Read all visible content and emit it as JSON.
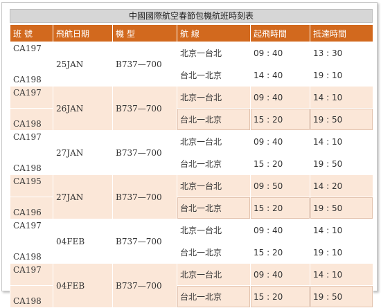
{
  "title": "中國國際航空春節包機航班時刻表",
  "headers": [
    "班 號",
    "飛航日期",
    "機 型",
    "航 線",
    "起飛時間",
    "抵達時間"
  ],
  "groups": [
    {
      "date": "25JAN",
      "aircraft": "B737—700",
      "flights": [
        {
          "code": "CA197",
          "route": "北京一台北",
          "dep": "09 : 40",
          "arr": "13 : 30"
        },
        {
          "code": "CA198",
          "route": "台北一北京",
          "dep": "14 : 40",
          "arr": "19 : 10"
        }
      ]
    },
    {
      "date": "26JAN",
      "aircraft": "B737—700",
      "flights": [
        {
          "code": "CA197",
          "route": "北京一台北",
          "dep": "09 : 40",
          "arr": "14 : 10"
        },
        {
          "code": "CA198",
          "route": "台北一北京",
          "dep": "15 : 20",
          "arr": "19 : 50"
        }
      ]
    },
    {
      "date": "27JAN",
      "aircraft": "B737—700",
      "flights": [
        {
          "code": "CA197",
          "route": "北京一台北",
          "dep": "09 : 40",
          "arr": "14 : 10"
        },
        {
          "code": "CA198",
          "route": "台北一北京",
          "dep": "15 : 20",
          "arr": "19 : 50"
        }
      ]
    },
    {
      "date": "27JAN",
      "aircraft": "B737—700",
      "flights": [
        {
          "code": "CA195",
          "route": "北京一台北",
          "dep": "09 : 50",
          "arr": "14 : 20"
        },
        {
          "code": "CA196",
          "route": "台北一北京",
          "dep": "15 : 20",
          "arr": "19 : 50"
        }
      ]
    },
    {
      "date": "04FEB",
      "aircraft": "B737—700",
      "flights": [
        {
          "code": "CA197",
          "route": "北京一台北",
          "dep": "09 : 40",
          "arr": "14 : 10"
        },
        {
          "code": "CA198",
          "route": "台北一北京",
          "dep": "15 : 20",
          "arr": "19 : 10"
        }
      ]
    },
    {
      "date": "04FEB",
      "aircraft": "B737—700",
      "flights": [
        {
          "code": "CA197",
          "route": "北京一台北",
          "dep": "09 : 40",
          "arr": "14 : 10"
        },
        {
          "code": "CA198",
          "route": "台北一北京",
          "dep": "15 : 20",
          "arr": "19 : 50"
        }
      ]
    }
  ],
  "colors": {
    "header_bg": "#d2691e",
    "stripe_bg": "#fbe7d8",
    "title_bg": "#d6d6d6"
  }
}
